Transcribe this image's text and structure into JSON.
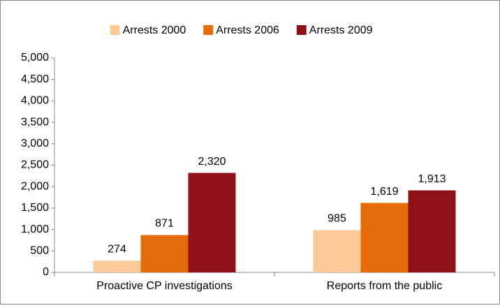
{
  "chart_data": {
    "type": "bar",
    "categories": [
      "Proactive CP investigations",
      "Reports from the public"
    ],
    "series": [
      {
        "name": "Arrests 2000",
        "color": "#fcc999",
        "values": [
          274,
          985
        ],
        "value_labels": [
          "274",
          "985"
        ]
      },
      {
        "name": "Arrests 2006",
        "color": "#e46c0a",
        "values": [
          871,
          1619
        ],
        "value_labels": [
          "871",
          "1,619"
        ]
      },
      {
        "name": "Arrests 2009",
        "color": "#8e1118",
        "values": [
          2320,
          1913
        ],
        "value_labels": [
          "2,320",
          "1,913"
        ]
      }
    ],
    "ylim": [
      0,
      5000
    ],
    "yticks": [
      0,
      500,
      {
        "value": 1000,
        "label": "1,000"
      },
      {
        "value": 1500,
        "label": "1,500"
      },
      {
        "value": 2000,
        "label": "2,000"
      },
      {
        "value": 2500,
        "label": "2,500"
      },
      {
        "value": 3000,
        "label": "3,000"
      },
      {
        "value": 3500,
        "label": "3,500"
      },
      {
        "value": 4000,
        "label": "4,000"
      },
      {
        "value": 4500,
        "label": "4,500"
      },
      {
        "value": 5000,
        "label": "5,000"
      }
    ],
    "grid": false,
    "legend": "top"
  }
}
